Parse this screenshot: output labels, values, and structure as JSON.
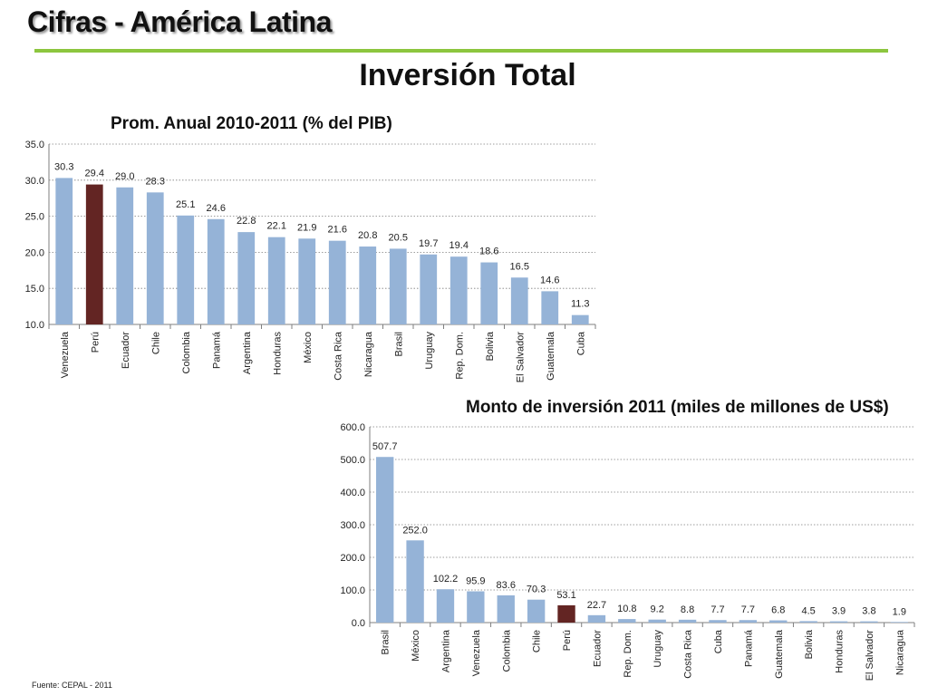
{
  "slide": {
    "title": "Cifras - América Latina",
    "main_title": "Inversión Total",
    "source": "Fuente: CEPAL - 2011"
  },
  "colors": {
    "bar": "#95b3d7",
    "highlight": "#632523",
    "rule": "#8cc63f"
  },
  "chart_data": [
    {
      "type": "bar",
      "title": "Prom. Anual 2010-2011  (% del PIB)",
      "categories": [
        "Venezuela",
        "Perú",
        "Ecuador",
        "Chile",
        "Colombia",
        "Panamá",
        "Argentina",
        "Honduras",
        "México",
        "Costa Rica",
        "Nicaragua",
        "Brasil",
        "Uruguay",
        "Rep. Dom.",
        "Bolivia",
        "El Salvador",
        "Guatemala",
        "Cuba"
      ],
      "values": [
        30.3,
        29.4,
        29.0,
        28.3,
        25.1,
        24.6,
        22.8,
        22.1,
        21.9,
        21.6,
        20.8,
        20.5,
        19.7,
        19.4,
        18.6,
        16.5,
        14.6,
        11.3
      ],
      "value_labels": [
        "30.3",
        "29.4",
        "29.0",
        "28.3",
        "25.1",
        "24.6",
        "22.8",
        "22.1",
        "21.9",
        "21.6",
        "20.8",
        "20.5",
        "19.7",
        "19.4",
        "18.6",
        "16.5",
        "14.6",
        "11.3"
      ],
      "highlight": "Perú",
      "ylim": [
        10.0,
        35.0
      ],
      "yticks": [
        "10.0",
        "15.0",
        "20.0",
        "25.0",
        "30.0",
        "35.0"
      ],
      "grid": true,
      "xlabel": "",
      "ylabel": ""
    },
    {
      "type": "bar",
      "title": "Monto de inversión  2011 (miles de millones de US$)",
      "categories": [
        "Brasil",
        "México",
        "Argentina",
        "Venezuela",
        "Colombia",
        "Chile",
        "Perú",
        "Ecuador",
        "Rep. Dom.",
        "Uruguay",
        "Costa Rica",
        "Cuba",
        "Panamá",
        "Guatemala",
        "Bolivia",
        "Honduras",
        "El Salvador",
        "Nicaragua"
      ],
      "values": [
        507.7,
        252.0,
        102.2,
        95.9,
        83.6,
        70.3,
        53.1,
        22.7,
        10.8,
        9.2,
        8.8,
        7.7,
        7.7,
        6.8,
        4.5,
        3.9,
        3.8,
        1.9
      ],
      "value_labels": [
        "507.7",
        "252.0",
        "102.2",
        "95.9",
        "83.6",
        "70.3",
        "53.1",
        "22.7",
        "10.8",
        "9.2",
        "8.8",
        "7.7",
        "7.7",
        "6.8",
        "4.5",
        "3.9",
        "3.8",
        "1.9"
      ],
      "highlight": "Perú",
      "ylim": [
        0.0,
        600.0
      ],
      "yticks": [
        "0.0",
        "100.0",
        "200.0",
        "300.0",
        "400.0",
        "500.0",
        "600.0"
      ],
      "grid": true,
      "xlabel": "",
      "ylabel": ""
    }
  ]
}
